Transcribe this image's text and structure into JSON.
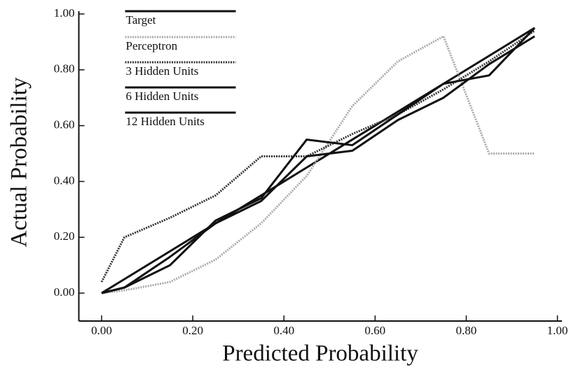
{
  "chart_data": {
    "type": "line",
    "xlabel": "Predicted Probability",
    "ylabel": "Actual Probability",
    "x": [
      0.0,
      0.05,
      0.15,
      0.25,
      0.35,
      0.45,
      0.55,
      0.65,
      0.75,
      0.85,
      0.95
    ],
    "series": [
      {
        "name": "Target",
        "color": "#111111",
        "style": "solid",
        "values": [
          0.0,
          0.05,
          0.15,
          0.25,
          0.35,
          0.45,
          0.55,
          0.65,
          0.75,
          0.85,
          0.95
        ]
      },
      {
        "name": "Perceptron",
        "color": "#aaaaaa",
        "style": "dotted",
        "values": [
          0.0,
          0.01,
          0.04,
          0.12,
          0.25,
          0.42,
          0.67,
          0.83,
          0.92,
          0.5,
          0.5
        ]
      },
      {
        "name": "3 Hidden Units",
        "color": "#333333",
        "style": "dotted",
        "values": [
          0.04,
          0.2,
          0.27,
          0.35,
          0.49,
          0.49,
          0.57,
          0.64,
          0.73,
          0.83,
          0.94
        ]
      },
      {
        "name": "6 Hidden Units",
        "color": "#111111",
        "style": "solid",
        "values": [
          0.0,
          0.02,
          0.1,
          0.26,
          0.34,
          0.55,
          0.53,
          0.64,
          0.75,
          0.78,
          0.95
        ]
      },
      {
        "name": "12 Hidden Units",
        "color": "#111111",
        "style": "solid",
        "values": [
          0.0,
          0.02,
          0.13,
          0.25,
          0.33,
          0.49,
          0.51,
          0.62,
          0.7,
          0.82,
          0.92
        ]
      }
    ],
    "xlim": [
      -0.05,
      1.01
    ],
    "ylim": [
      -0.1,
      1.01
    ],
    "xticks": [
      {
        "value": 0,
        "label": "0.00"
      },
      {
        "value": 0.2,
        "label": "0.20"
      },
      {
        "value": 0.4,
        "label": "0.40"
      },
      {
        "value": 0.6,
        "label": "0.60"
      },
      {
        "value": 0.8,
        "label": "0.80"
      },
      {
        "value": 1,
        "label": "1.00"
      }
    ],
    "yticks": [
      {
        "value": 0,
        "label": "0.00"
      },
      {
        "value": 0.2,
        "label": "0.20"
      },
      {
        "value": 0.4,
        "label": "0.40"
      },
      {
        "value": 0.6,
        "label": "0.60"
      },
      {
        "value": 0.8,
        "label": "0.80"
      },
      {
        "value": 1,
        "label": "1.00"
      }
    ],
    "grid": false,
    "legend": "upper left"
  }
}
